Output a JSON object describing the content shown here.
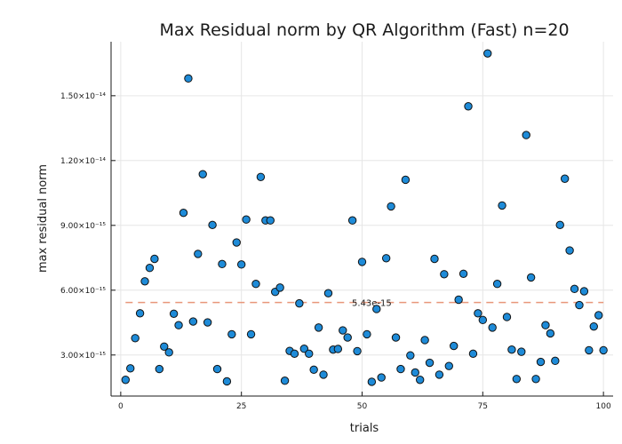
{
  "chart_data": {
    "type": "scatter",
    "title": "Max Residual norm by QR Algorithm (Fast)  n=20",
    "xlabel": "trials",
    "ylabel": "max residual norm",
    "xlim": [
      -2,
      102
    ],
    "ylim": [
      1.1e-15,
      1.75e-14
    ],
    "xticks": [
      {
        "value": 0,
        "label": "0"
      },
      {
        "value": 25,
        "label": "25"
      },
      {
        "value": 50,
        "label": "50"
      },
      {
        "value": 75,
        "label": "75"
      },
      {
        "value": 100,
        "label": "100"
      }
    ],
    "yticks": [
      {
        "value": 3e-15,
        "label": "3.00×10⁻¹⁵"
      },
      {
        "value": 6e-15,
        "label": "6.00×10⁻¹⁵"
      },
      {
        "value": 9e-15,
        "label": "9.00×10⁻¹⁵"
      },
      {
        "value": 1.2e-14,
        "label": "1.20×10⁻¹⁴"
      },
      {
        "value": 1.5e-14,
        "label": "1.50×10⁻¹⁴"
      }
    ],
    "grid": true,
    "marker_color": "#1e8bd8",
    "mean_line": {
      "value": 5.43e-15,
      "label": "5.43e-15",
      "color": "#e8967a"
    },
    "series": [
      {
        "x": [
          1,
          2,
          3,
          4,
          5,
          6,
          7,
          8,
          9,
          10,
          11,
          12,
          13,
          14,
          15,
          16,
          17,
          18,
          19,
          20,
          21,
          22,
          23,
          24,
          25,
          26,
          27,
          28,
          29,
          30,
          31,
          32,
          33,
          34,
          35,
          36,
          37,
          38,
          39,
          40,
          41,
          42,
          43,
          44,
          45,
          46,
          47,
          48,
          49,
          50,
          51,
          52,
          53,
          54,
          55,
          56,
          57,
          58,
          59,
          60,
          61,
          62,
          63,
          64,
          65,
          66,
          67,
          68,
          69,
          70,
          71,
          72,
          73,
          74,
          75,
          76,
          77,
          78,
          79,
          80,
          81,
          82,
          83,
          84,
          85,
          86,
          87,
          88,
          89,
          90,
          91,
          92,
          93,
          94,
          95,
          96,
          97,
          98,
          99,
          100
        ],
        "y": [
          1.85e-15,
          2.38e-15,
          3.78e-15,
          4.93e-15,
          6.41e-15,
          7.03e-15,
          7.45e-15,
          2.35e-15,
          3.39e-15,
          3.12e-15,
          4.91e-15,
          4.38e-15,
          9.58e-15,
          1.58e-14,
          4.55e-15,
          7.68e-15,
          1.137e-14,
          4.51e-15,
          9.02e-15,
          2.35e-15,
          7.21e-15,
          1.78e-15,
          3.96e-15,
          8.21e-15,
          7.19e-15,
          9.27e-15,
          3.96e-15,
          6.29e-15,
          1.124e-14,
          9.23e-15,
          9.23e-15,
          5.92e-15,
          6.12e-15,
          1.81e-15,
          3.19e-15,
          3.06e-15,
          5.39e-15,
          3.29e-15,
          3.06e-15,
          2.32e-15,
          4.27e-15,
          2.09e-15,
          5.86e-15,
          3.25e-15,
          3.28e-15,
          4.14e-15,
          3.81e-15,
          9.23e-15,
          3.18e-15,
          7.31e-15,
          3.96e-15,
          1.76e-15,
          5.13e-15,
          1.96e-15,
          7.48e-15,
          9.88e-15,
          3.81e-15,
          2.35e-15,
          1.111e-14,
          2.98e-15,
          2.19e-15,
          1.85e-15,
          3.69e-15,
          2.64e-15,
          7.45e-15,
          2.09e-15,
          6.74e-15,
          2.49e-15,
          3.42e-15,
          5.56e-15,
          6.76e-15,
          1.451e-14,
          3.06e-15,
          4.93e-15,
          4.62e-15,
          1.696e-14,
          4.27e-15,
          6.29e-15,
          9.92e-15,
          4.76e-15,
          3.25e-15,
          1.89e-15,
          3.15e-15,
          1.318e-14,
          6.59e-15,
          1.89e-15,
          2.68e-15,
          4.38e-15,
          4e-15,
          2.73e-15,
          9.02e-15,
          1.116e-14,
          7.84e-15,
          6.06e-15,
          5.31e-15,
          5.95e-15,
          3.22e-15,
          4.32e-15,
          4.84e-15,
          3.22e-15
        ]
      }
    ]
  }
}
